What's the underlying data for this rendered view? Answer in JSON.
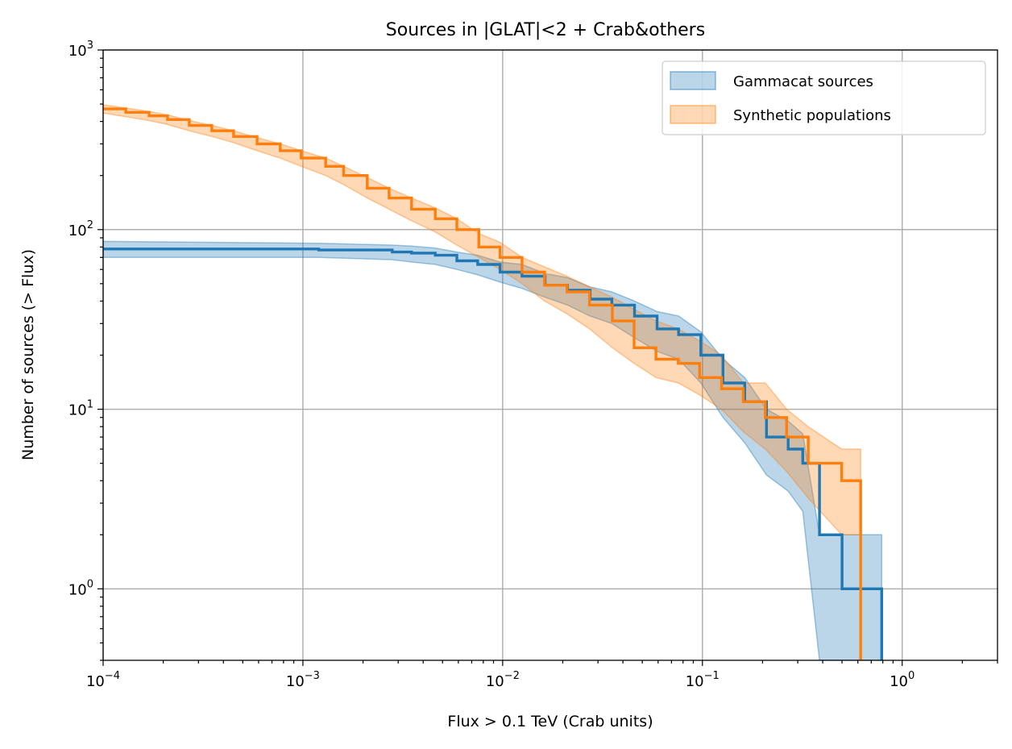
{
  "chart_data": {
    "type": "line",
    "title": "Sources in |GLAT|<2 + Crab&others",
    "xlabel": "Flux > 0.1 TeV (Crab units)",
    "ylabel": "Number of sources (> Flux)",
    "xscale": "log",
    "yscale": "log",
    "xlim": [
      0.0001,
      3
    ],
    "ylim": [
      0.4,
      1000
    ],
    "grid": true,
    "legend_position": "top-right",
    "x_ticks": [
      {
        "base": "10",
        "exp": "−4"
      },
      {
        "base": "10",
        "exp": "−3"
      },
      {
        "base": "10",
        "exp": "−2"
      },
      {
        "base": "10",
        "exp": "−1"
      },
      {
        "base": "10",
        "exp": "0"
      }
    ],
    "y_ticks": [
      {
        "base": "10",
        "exp": "0"
      },
      {
        "base": "10",
        "exp": "1"
      },
      {
        "base": "10",
        "exp": "2"
      },
      {
        "base": "10",
        "exp": "3"
      }
    ],
    "series": [
      {
        "name": "Gammacat sources",
        "color": "#1f77b4",
        "x": [
          0.0001,
          0.0012,
          0.0028,
          0.0035,
          0.0046,
          0.0059,
          0.0075,
          0.0097,
          0.0125,
          0.0163,
          0.0211,
          0.0274,
          0.0352,
          0.0457,
          0.0593,
          0.076,
          0.0982,
          0.1268,
          0.1629,
          0.2092,
          0.2687,
          0.3179,
          0.3857,
          0.5,
          0.79
        ],
        "y": [
          78,
          77,
          75,
          74,
          72,
          67,
          64,
          58,
          55,
          49,
          46,
          41,
          38,
          33,
          28,
          26,
          20,
          14,
          11,
          7,
          6,
          5,
          2,
          1,
          1
        ],
        "band_lower": [
          70,
          70,
          68,
          66,
          64,
          60,
          56,
          51,
          47,
          42,
          38,
          33,
          30,
          25,
          21,
          19,
          14,
          9,
          6.5,
          4.3,
          3.5,
          2.7,
          0.4,
          0.4,
          0.4
        ],
        "band_upper": [
          86,
          84,
          82,
          81,
          79,
          75,
          72,
          66,
          64,
          57,
          54,
          48,
          45,
          40,
          35,
          33,
          27,
          19,
          15,
          10,
          8.6,
          7.3,
          2,
          2,
          2
        ]
      },
      {
        "name": "Synthetic populations",
        "color": "#ff7f0e",
        "x": [
          0.0001,
          0.00013,
          0.00017,
          0.00021,
          0.00027,
          0.00035,
          0.00045,
          0.00059,
          0.00077,
          0.00098,
          0.0013,
          0.0016,
          0.0021,
          0.0027,
          0.0035,
          0.0046,
          0.0059,
          0.0076,
          0.0097,
          0.0125,
          0.0162,
          0.021,
          0.0272,
          0.0354,
          0.0455,
          0.0585,
          0.0757,
          0.0968,
          0.1246,
          0.1602,
          0.2064,
          0.264,
          0.3385,
          0.498,
          0.62
        ],
        "y": [
          470,
          450,
          430,
          410,
          380,
          355,
          330,
          300,
          275,
          250,
          225,
          200,
          170,
          150,
          130,
          115,
          100,
          80,
          70,
          58,
          49,
          45,
          38,
          31,
          22,
          19,
          18,
          15,
          13,
          11,
          9,
          7,
          5,
          4,
          4
        ],
        "band_lower": [
          445,
          425,
          405,
          385,
          355,
          330,
          305,
          275,
          250,
          225,
          200,
          178,
          150,
          130,
          112,
          97,
          82,
          70,
          60,
          50,
          40,
          34,
          28,
          22,
          18,
          15,
          14,
          12,
          10,
          7.5,
          6,
          4.5,
          3.2,
          2,
          2
        ],
        "band_upper": [
          495,
          475,
          455,
          435,
          405,
          380,
          355,
          325,
          300,
          275,
          250,
          225,
          195,
          170,
          150,
          132,
          115,
          95,
          85,
          70,
          62,
          55,
          48,
          42,
          36,
          31,
          28,
          24,
          20,
          14,
          14,
          10,
          8,
          6,
          6
        ]
      }
    ]
  }
}
